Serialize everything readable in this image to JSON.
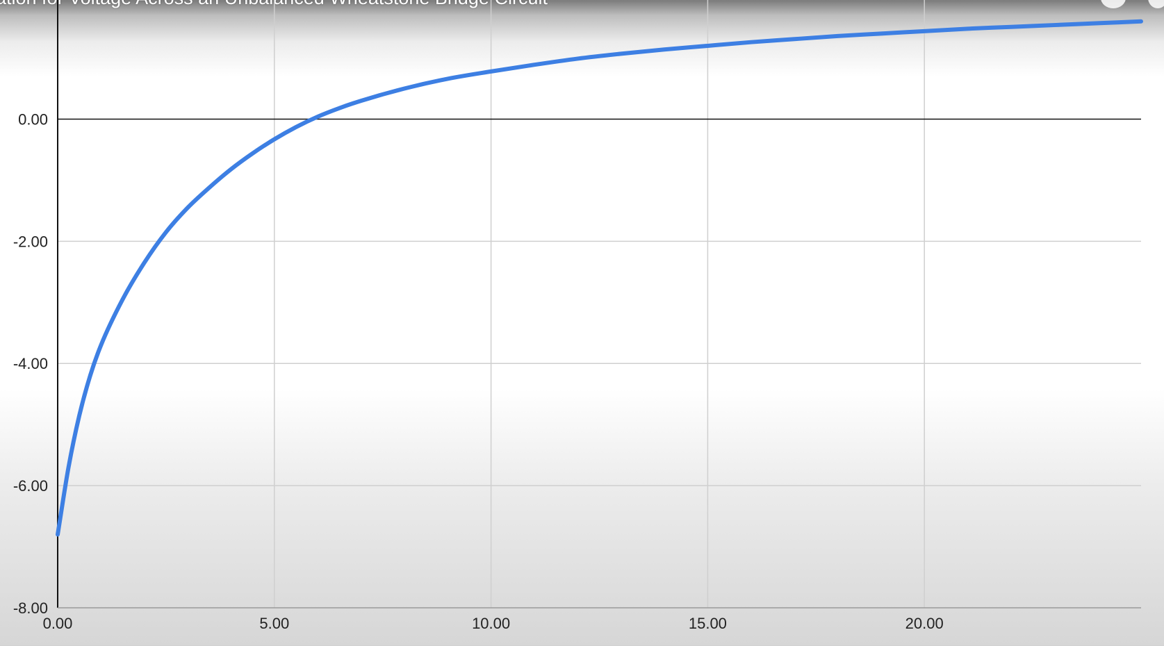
{
  "video": {
    "title": "ation for Voltage Across an Unbalanced Wheatstone Bridge Circuit"
  },
  "colors": {
    "series": "#3d7fe3",
    "grid": "#cfcfcf",
    "axis": "#111111"
  },
  "chart_data": {
    "type": "line",
    "title": "",
    "xlabel": "",
    "ylabel": "",
    "xlim": [
      0,
      25
    ],
    "ylim": [
      -8,
      1.95
    ],
    "grid": true,
    "legend": "none",
    "x_ticks": [
      "0.00",
      "5.00",
      "10.00",
      "15.00",
      "20.00"
    ],
    "y_ticks": [
      "0.00",
      "-2.00",
      "-4.00",
      "-6.00",
      "-8.00"
    ],
    "series": [
      {
        "name": "",
        "x": [
          0.0,
          0.25,
          0.5,
          0.75,
          1.0,
          1.5,
          2.0,
          2.5,
          3.0,
          3.5,
          4.0,
          4.5,
          5.0,
          5.5,
          6.0,
          6.5,
          7.0,
          8.0,
          9.0,
          10.0,
          11.0,
          12.0,
          13.0,
          14.0,
          15.0,
          16.0,
          17.0,
          18.0,
          19.0,
          20.0,
          21.0,
          22.0,
          23.0,
          24.0,
          25.0
        ],
        "y": [
          -6.8,
          -5.7,
          -4.85,
          -4.2,
          -3.7,
          -2.95,
          -2.35,
          -1.85,
          -1.45,
          -1.12,
          -0.82,
          -0.56,
          -0.33,
          -0.13,
          0.04,
          0.18,
          0.3,
          0.5,
          0.66,
          0.78,
          0.89,
          0.99,
          1.07,
          1.14,
          1.2,
          1.26,
          1.31,
          1.36,
          1.4,
          1.44,
          1.48,
          1.51,
          1.54,
          1.57,
          1.6
        ]
      }
    ]
  }
}
